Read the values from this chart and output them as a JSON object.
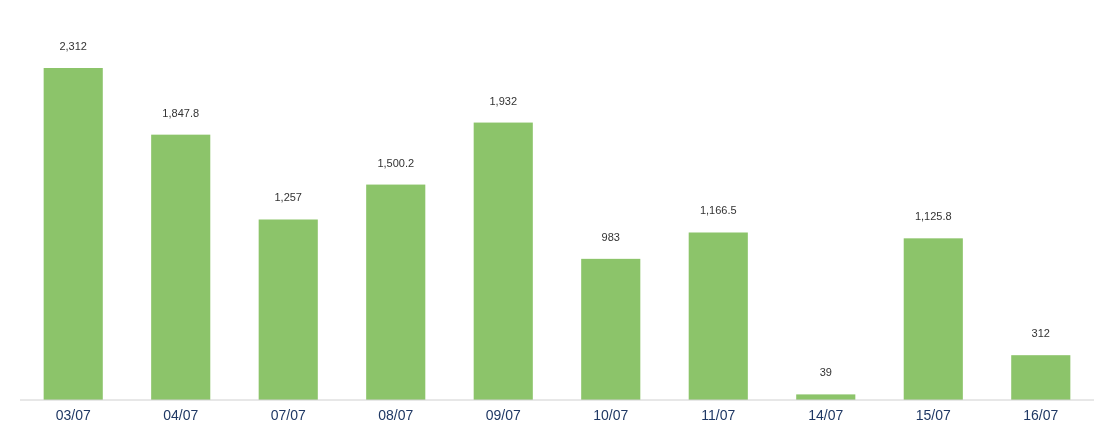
{
  "chart_data": {
    "type": "bar",
    "categories": [
      "03/07",
      "04/07",
      "07/07",
      "08/07",
      "09/07",
      "10/07",
      "11/07",
      "14/07",
      "15/07",
      "16/07"
    ],
    "values": [
      2312,
      1847.8,
      1257,
      1500.2,
      1932,
      983,
      1166.5,
      39,
      1125.8,
      312
    ],
    "value_labels": [
      "2,312",
      "1,847.8",
      "1,257",
      "1,500.2",
      "1,932",
      "983",
      "1,166.5",
      "39",
      "1,125.8",
      "312"
    ],
    "color": "#8cc46a"
  }
}
